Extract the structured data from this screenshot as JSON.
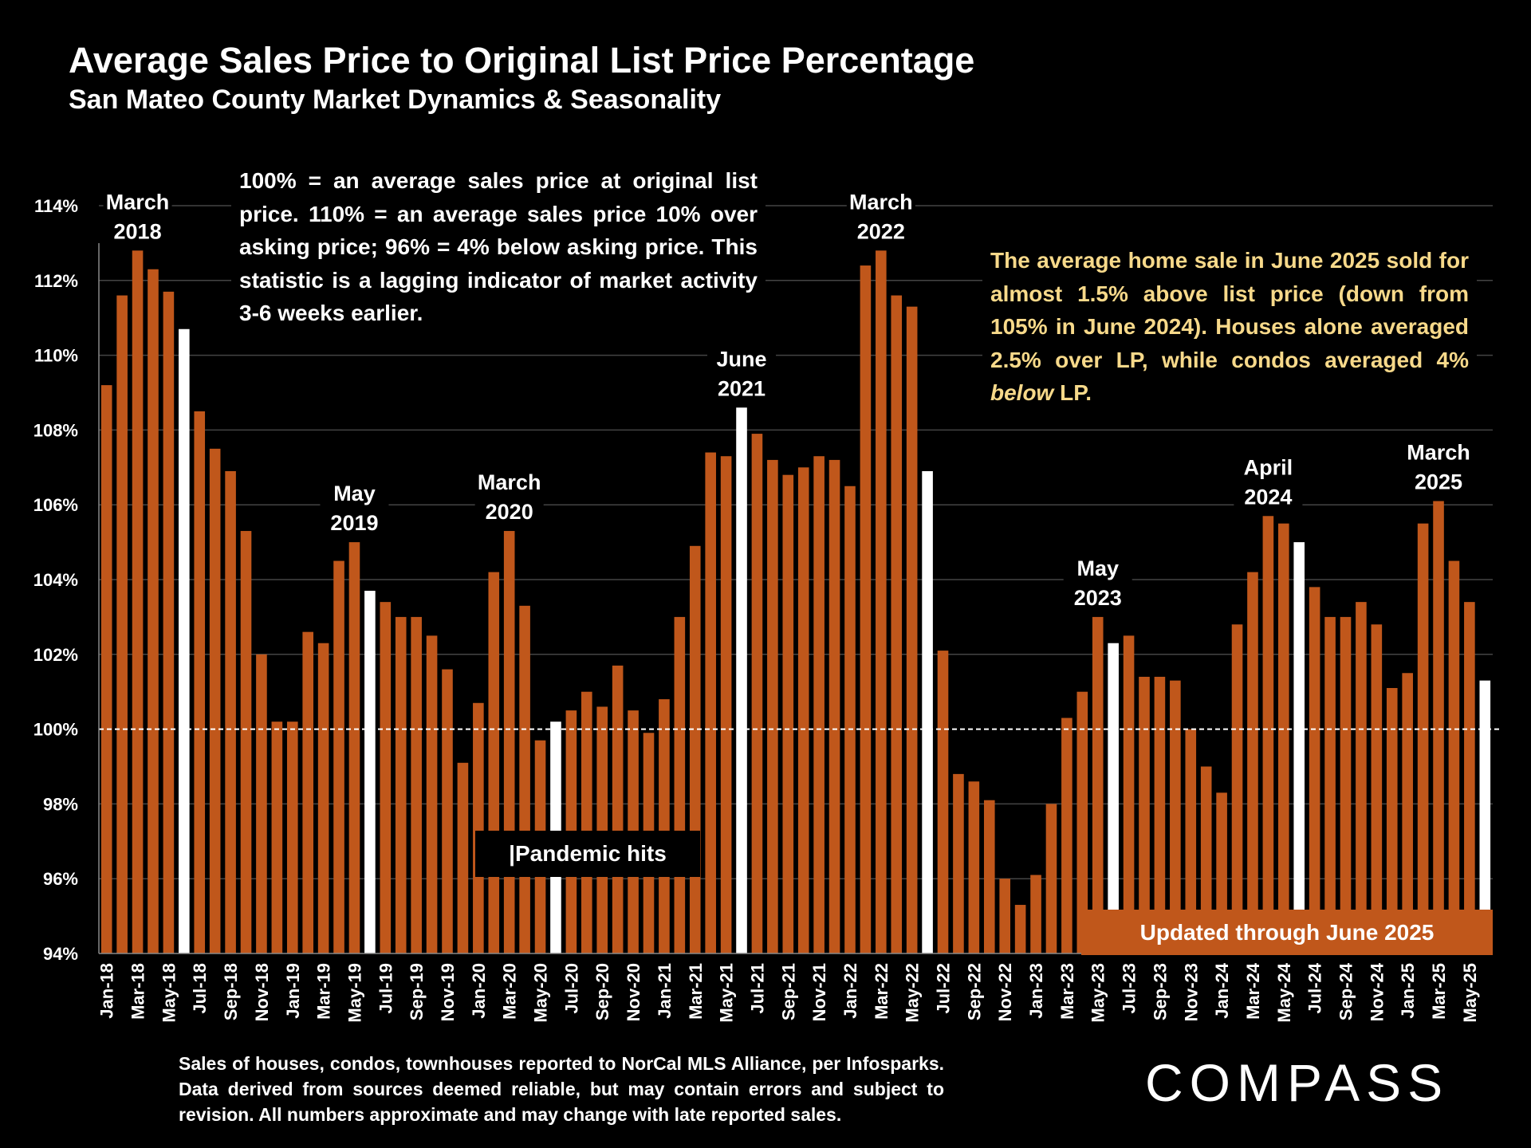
{
  "title": "Average Sales Price to Original List Price Percentage",
  "subtitle": "San Mateo County Market Dynamics & Seasonality",
  "annotations": {
    "explanation": "100% = an average sales price at original list price. 110% = an average sales price 10% over asking price; 96% = 4% below asking price. This statistic is a lagging indicator of market activity 3-6 weeks earlier.",
    "summary_before": "The average home sale in June 2025 sold for almost 1.5% above list price (down from 105% in June 2024). Houses alone averaged 2.5% over LP, while condos averaged 4% ",
    "summary_emph": "below",
    "summary_after": " LP.",
    "pandemic": "|Pandemic hits",
    "updated": "Updated through June 2025"
  },
  "footnote": "Sales of houses, condos, townhouses reported to NorCal MLS Alliance, per Infosparks. Data derived from sources deemed reliable, but may contain errors and subject to revision. All numbers approximate and may change with late reported sales.",
  "logo": "COMPASS",
  "colors": {
    "bar": "#c0571b",
    "highlight": "#ffffff",
    "background": "#000000",
    "summary_text": "#f7d98a",
    "grid": "#444444"
  },
  "chart_data": {
    "type": "bar",
    "ylim": [
      94,
      114
    ],
    "yticks": [
      94,
      96,
      98,
      100,
      102,
      104,
      106,
      108,
      110,
      112,
      114
    ],
    "ytick_labels": [
      "94%",
      "96%",
      "98%",
      "100%",
      "102%",
      "104%",
      "106%",
      "108%",
      "110%",
      "112%",
      "114%"
    ],
    "reference_line": 100,
    "grid": true,
    "categories": [
      "Jan-18",
      "Feb-18",
      "Mar-18",
      "Apr-18",
      "May-18",
      "Jun-18",
      "Jul-18",
      "Aug-18",
      "Sep-18",
      "Oct-18",
      "Nov-18",
      "Dec-18",
      "Jan-19",
      "Feb-19",
      "Mar-19",
      "Apr-19",
      "May-19",
      "Jun-19",
      "Jul-19",
      "Aug-19",
      "Sep-19",
      "Oct-19",
      "Nov-19",
      "Dec-19",
      "Jan-20",
      "Feb-20",
      "Mar-20",
      "Apr-20",
      "May-20",
      "Jun-20",
      "Jul-20",
      "Aug-20",
      "Sep-20",
      "Oct-20",
      "Nov-20",
      "Dec-20",
      "Jan-21",
      "Feb-21",
      "Mar-21",
      "Apr-21",
      "May-21",
      "Jun-21",
      "Jul-21",
      "Aug-21",
      "Sep-21",
      "Oct-21",
      "Nov-21",
      "Dec-21",
      "Jan-22",
      "Feb-22",
      "Mar-22",
      "Apr-22",
      "May-22",
      "Jun-22",
      "Jul-22",
      "Aug-22",
      "Sep-22",
      "Oct-22",
      "Nov-22",
      "Dec-22",
      "Jan-23",
      "Feb-23",
      "Mar-23",
      "Apr-23",
      "May-23",
      "Jun-23",
      "Jul-23",
      "Aug-23",
      "Sep-23",
      "Oct-23",
      "Nov-23",
      "Dec-23",
      "Jan-24",
      "Feb-24",
      "Mar-24",
      "Apr-24",
      "May-24",
      "Jun-24",
      "Jul-24",
      "Aug-24",
      "Sep-24",
      "Oct-24",
      "Nov-24",
      "Dec-24",
      "Jan-25",
      "Feb-25",
      "Mar-25",
      "Apr-25",
      "May-25",
      "Jun-25"
    ],
    "xtick_labels": [
      "Jan-18",
      "Mar-18",
      "May-18",
      "Jul-18",
      "Sep-18",
      "Nov-18",
      "Jan-19",
      "Mar-19",
      "May-19",
      "Jul-19",
      "Sep-19",
      "Nov-19",
      "Jan-20",
      "Mar-20",
      "May-20",
      "Jul-20",
      "Sep-20",
      "Nov-20",
      "Jan-21",
      "Mar-21",
      "May-21",
      "Jul-21",
      "Sep-21",
      "Nov-21",
      "Jan-22",
      "Mar-22",
      "May-22",
      "Jul-22",
      "Sep-22",
      "Nov-22",
      "Jan-23",
      "Mar-23",
      "May-23",
      "Jul-23",
      "Sep-23",
      "Nov-23",
      "Jan-24",
      "Mar-24",
      "May-24",
      "Jul-24",
      "Sep-24",
      "Nov-24",
      "Jan-25",
      "Mar-25",
      "May-25"
    ],
    "values": [
      109.2,
      111.6,
      112.8,
      112.3,
      111.7,
      110.7,
      108.5,
      107.5,
      106.9,
      105.3,
      102.0,
      100.2,
      100.2,
      102.6,
      102.3,
      104.5,
      105.0,
      103.7,
      103.4,
      103.0,
      103.0,
      102.5,
      101.6,
      99.1,
      100.7,
      104.2,
      105.3,
      103.3,
      99.7,
      100.2,
      100.5,
      101.0,
      100.6,
      101.7,
      100.5,
      99.9,
      100.8,
      103.0,
      104.9,
      107.4,
      107.3,
      108.6,
      107.9,
      107.2,
      106.8,
      107.0,
      107.3,
      107.2,
      106.5,
      112.4,
      112.8,
      111.6,
      111.3,
      106.9,
      102.1,
      98.8,
      98.6,
      98.1,
      96.0,
      95.3,
      96.1,
      98.0,
      100.3,
      101.0,
      103.0,
      102.3,
      102.5,
      101.4,
      101.4,
      101.3,
      100.0,
      99.0,
      98.3,
      102.8,
      104.2,
      105.7,
      105.5,
      105.0,
      103.8,
      103.0,
      103.0,
      103.4,
      102.8,
      101.1,
      101.5,
      105.5,
      106.1,
      104.5,
      103.4,
      101.3
    ],
    "highlight_categories": [
      "Jun-18",
      "Jun-19",
      "Jun-20",
      "Jun-21",
      "Jun-22",
      "Jun-23",
      "Jun-24",
      "Jun-25"
    ],
    "peak_labels": [
      {
        "category": "Mar-18",
        "line1": "March",
        "line2": "2018"
      },
      {
        "category": "May-19",
        "line1": "May",
        "line2": "2019"
      },
      {
        "category": "Mar-20",
        "line1": "March",
        "line2": "2020"
      },
      {
        "category": "Jun-21",
        "line1": "June",
        "line2": "2021"
      },
      {
        "category": "Mar-22",
        "line1": "March",
        "line2": "2022"
      },
      {
        "category": "May-23",
        "line1": "May",
        "line2": "2023"
      },
      {
        "category": "Apr-24",
        "line1": "April",
        "line2": "2024"
      },
      {
        "category": "Mar-25",
        "line1": "March",
        "line2": "2025"
      }
    ]
  }
}
